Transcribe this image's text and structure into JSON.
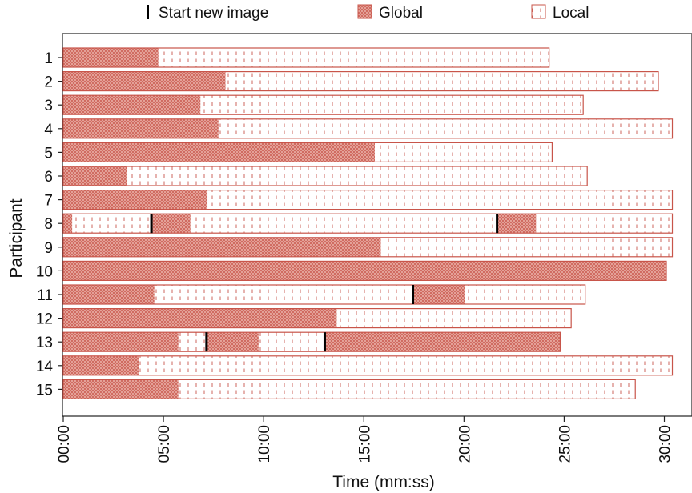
{
  "chart_data": {
    "type": "bar",
    "orientation": "horizontal",
    "stacked": "timeline",
    "xlabel": "Time (mm:ss)",
    "ylabel": "Participant",
    "xlim": [
      0,
      30.4
    ],
    "x_ticks": [
      "00:00",
      "05:00",
      "10:00",
      "15:00",
      "20:00",
      "25:00",
      "30:00"
    ],
    "x_tick_values": [
      0,
      5,
      10,
      15,
      20,
      25,
      30
    ],
    "grid": false,
    "legend": {
      "placement": "top",
      "entries": [
        {
          "key": "start",
          "label": "Start new image"
        },
        {
          "key": "global",
          "label": "Global"
        },
        {
          "key": "local",
          "label": "Local"
        }
      ]
    },
    "colors": {
      "bar_edge": "#c8554a",
      "global_fill": "#e6a9a0",
      "local_fill": "#ffffff",
      "marker": "#000000"
    },
    "participants": [
      {
        "label": "1",
        "segments": [
          {
            "mode": "global",
            "start": 0,
            "end": 4.75
          },
          {
            "mode": "local",
            "start": 4.75,
            "end": 24.25
          }
        ],
        "new_image": []
      },
      {
        "label": "2",
        "segments": [
          {
            "mode": "global",
            "start": 0,
            "end": 8.1
          },
          {
            "mode": "local",
            "start": 8.1,
            "end": 29.7
          }
        ],
        "new_image": []
      },
      {
        "label": "3",
        "segments": [
          {
            "mode": "global",
            "start": 0,
            "end": 6.85
          },
          {
            "mode": "local",
            "start": 6.85,
            "end": 25.95
          }
        ],
        "new_image": []
      },
      {
        "label": "4",
        "segments": [
          {
            "mode": "global",
            "start": 0,
            "end": 7.75
          },
          {
            "mode": "local",
            "start": 7.75,
            "end": 30.4
          }
        ],
        "new_image": []
      },
      {
        "label": "5",
        "segments": [
          {
            "mode": "global",
            "start": 0,
            "end": 15.55
          },
          {
            "mode": "local",
            "start": 15.55,
            "end": 24.4
          }
        ],
        "new_image": []
      },
      {
        "label": "6",
        "segments": [
          {
            "mode": "global",
            "start": 0,
            "end": 3.2
          },
          {
            "mode": "local",
            "start": 3.2,
            "end": 26.15
          }
        ],
        "new_image": []
      },
      {
        "label": "7",
        "segments": [
          {
            "mode": "global",
            "start": 0,
            "end": 7.2
          },
          {
            "mode": "local",
            "start": 7.2,
            "end": 30.4
          }
        ],
        "new_image": []
      },
      {
        "label": "8",
        "segments": [
          {
            "mode": "global",
            "start": 0,
            "end": 0.45
          },
          {
            "mode": "local",
            "start": 0.45,
            "end": 4.4
          },
          {
            "mode": "global",
            "start": 4.4,
            "end": 6.35
          },
          {
            "mode": "local",
            "start": 6.35,
            "end": 21.65
          },
          {
            "mode": "global",
            "start": 21.65,
            "end": 23.6
          },
          {
            "mode": "local",
            "start": 23.6,
            "end": 30.4
          }
        ],
        "new_image": [
          4.4,
          21.65
        ]
      },
      {
        "label": "9",
        "segments": [
          {
            "mode": "global",
            "start": 0,
            "end": 15.85
          },
          {
            "mode": "local",
            "start": 15.85,
            "end": 30.4
          }
        ],
        "new_image": []
      },
      {
        "label": "10",
        "segments": [
          {
            "mode": "global",
            "start": 0,
            "end": 30.1
          }
        ],
        "new_image": []
      },
      {
        "label": "11",
        "segments": [
          {
            "mode": "global",
            "start": 0,
            "end": 4.55
          },
          {
            "mode": "local",
            "start": 4.55,
            "end": 17.45
          },
          {
            "mode": "global",
            "start": 17.45,
            "end": 20.05
          },
          {
            "mode": "local",
            "start": 20.05,
            "end": 26.05
          }
        ],
        "new_image": [
          17.45
        ]
      },
      {
        "label": "12",
        "segments": [
          {
            "mode": "global",
            "start": 0,
            "end": 13.65
          },
          {
            "mode": "local",
            "start": 13.65,
            "end": 25.35
          }
        ],
        "new_image": []
      },
      {
        "label": "13",
        "segments": [
          {
            "mode": "global",
            "start": 0,
            "end": 5.75
          },
          {
            "mode": "local",
            "start": 5.75,
            "end": 7.15
          },
          {
            "mode": "global",
            "start": 7.15,
            "end": 9.75
          },
          {
            "mode": "local",
            "start": 9.75,
            "end": 13.05
          },
          {
            "mode": "global",
            "start": 13.05,
            "end": 24.8
          }
        ],
        "new_image": [
          7.15,
          13.05
        ]
      },
      {
        "label": "14",
        "segments": [
          {
            "mode": "global",
            "start": 0,
            "end": 3.8
          },
          {
            "mode": "local",
            "start": 3.8,
            "end": 30.4
          }
        ],
        "new_image": []
      },
      {
        "label": "15",
        "segments": [
          {
            "mode": "global",
            "start": 0,
            "end": 5.75
          },
          {
            "mode": "local",
            "start": 5.75,
            "end": 28.55
          }
        ],
        "new_image": []
      }
    ]
  }
}
